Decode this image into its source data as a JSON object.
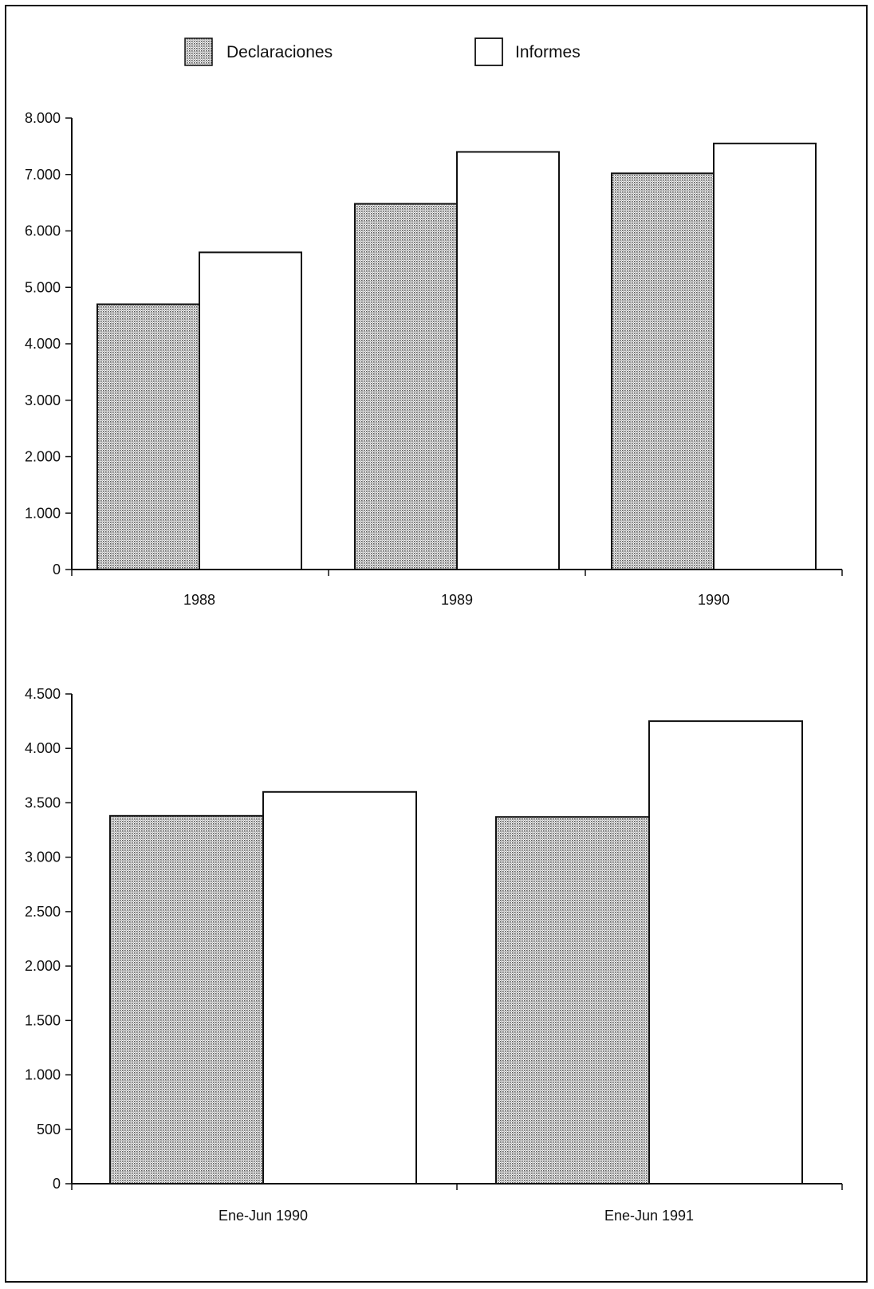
{
  "legend": {
    "items": [
      {
        "label": "Declaraciones",
        "fill": "dots"
      },
      {
        "label": "Informes",
        "fill": "#ffffff"
      }
    ]
  },
  "colors": {
    "stroke": "#111111",
    "shade_dot": "#555555",
    "background": "#ffffff"
  },
  "chart_data": [
    {
      "type": "bar",
      "title": "",
      "xlabel": "",
      "ylabel": "",
      "categories": [
        "1988",
        "1989",
        "1990"
      ],
      "series": [
        {
          "name": "Declaraciones",
          "values": [
            4700,
            6480,
            7020
          ]
        },
        {
          "name": "Informes",
          "values": [
            5620,
            7400,
            7550
          ]
        }
      ],
      "ylim": [
        0,
        8000
      ],
      "yticks": [
        0,
        1000,
        2000,
        3000,
        4000,
        5000,
        6000,
        7000,
        8000
      ],
      "ytick_labels": [
        "0",
        "1.000",
        "2.000",
        "3.000",
        "4.000",
        "5.000",
        "6.000",
        "7.000",
        "8.000"
      ],
      "grid": false,
      "legend_position": "top"
    },
    {
      "type": "bar",
      "title": "",
      "xlabel": "",
      "ylabel": "",
      "categories": [
        "Ene-Jun 1990",
        "Ene-Jun 1991"
      ],
      "series": [
        {
          "name": "Declaraciones",
          "values": [
            3380,
            3370
          ]
        },
        {
          "name": "Informes",
          "values": [
            3600,
            4250
          ]
        }
      ],
      "ylim": [
        0,
        4500
      ],
      "yticks": [
        0,
        500,
        1000,
        1500,
        2000,
        2500,
        3000,
        3500,
        4000,
        4500
      ],
      "ytick_labels": [
        "0",
        "500",
        "1.000",
        "1.500",
        "2.000",
        "2.500",
        "3.000",
        "3.500",
        "4.000",
        "4.500"
      ],
      "grid": false,
      "legend_position": "none"
    }
  ]
}
